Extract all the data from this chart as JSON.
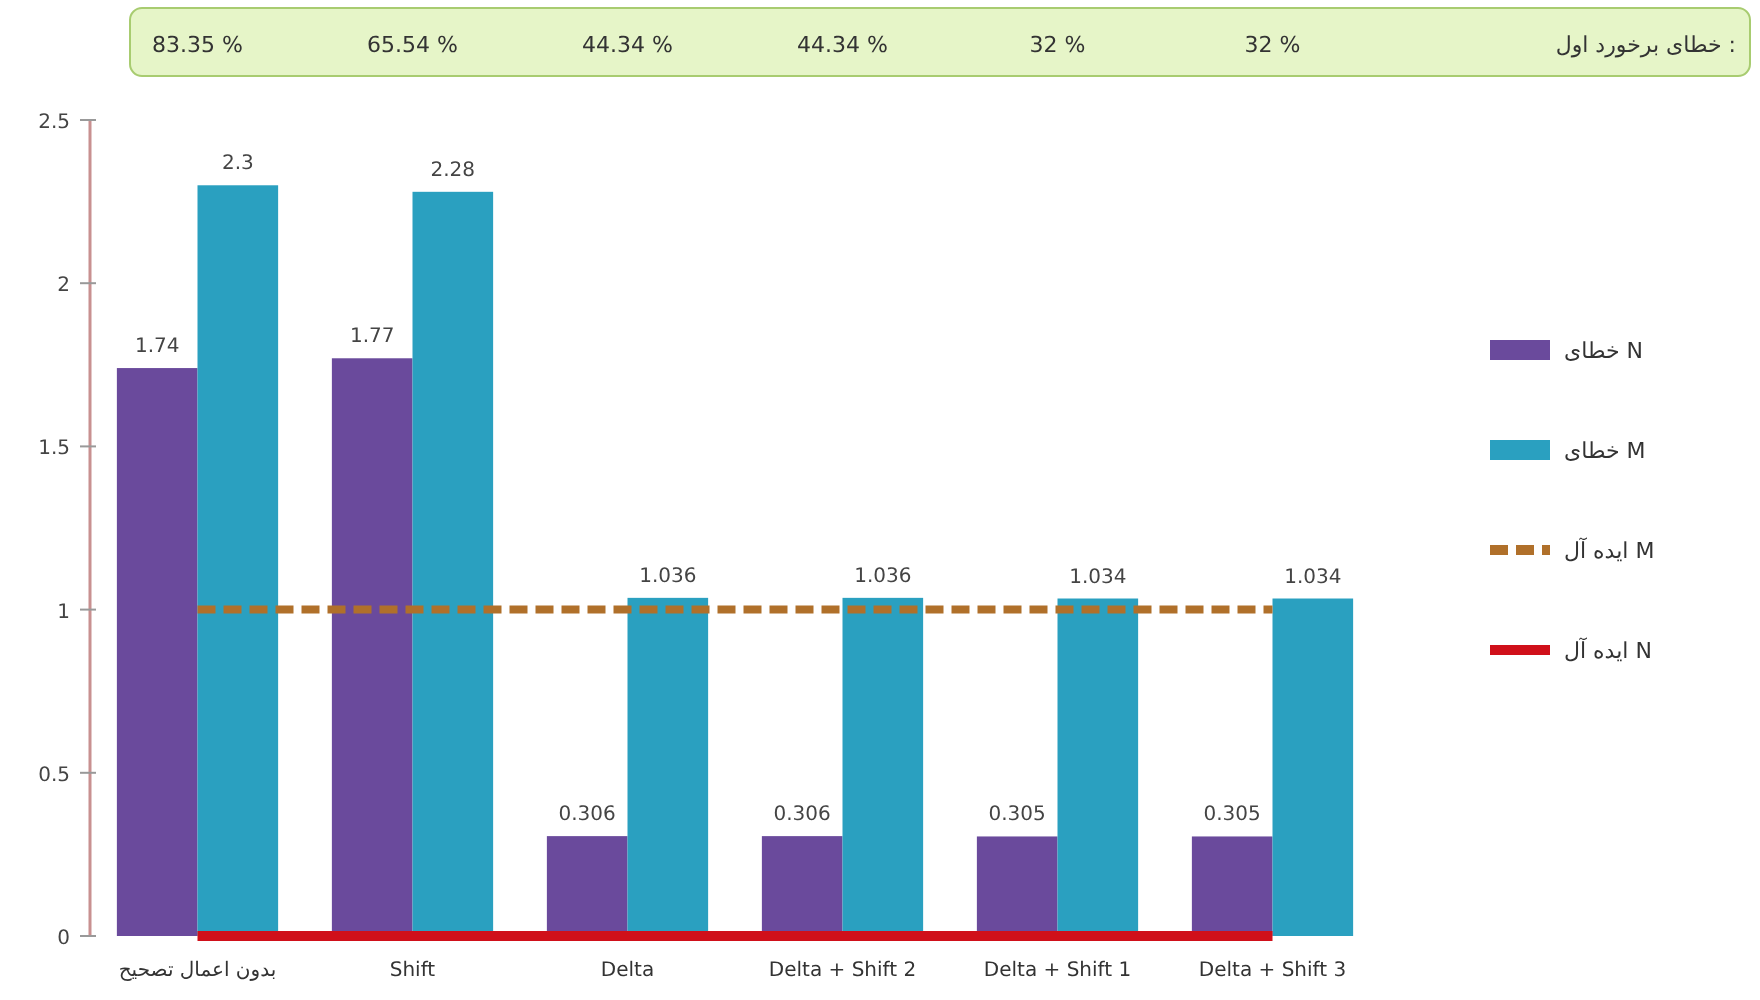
{
  "chart_data": {
    "type": "bar",
    "categories": [
      "بدون اعمال تصحیح",
      "Shift",
      "Delta",
      "Delta + Shift 2",
      "Delta + Shift 1",
      "Delta + Shift 3"
    ],
    "series": [
      {
        "name": "خطای N",
        "color": "#6a4a9c",
        "values": [
          1.74,
          1.77,
          0.306,
          0.306,
          0.305,
          0.305
        ],
        "value_labels": [
          "1.74",
          "1.77",
          "0.306",
          "0.306",
          "0.305",
          "0.305"
        ]
      },
      {
        "name": "خطای M",
        "color": "#2aa0c0",
        "values": [
          2.3,
          2.28,
          1.036,
          1.036,
          1.034,
          1.034
        ],
        "value_labels": [
          "2.3",
          "2.28",
          "1.036",
          "1.036",
          "1.034",
          "1.034"
        ]
      },
      {
        "name": "ایده آل M",
        "type": "line",
        "line_style": "dashed",
        "color": "#b0702a",
        "values": [
          1,
          1,
          1,
          1,
          1,
          1
        ]
      },
      {
        "name": "ایده آل N",
        "type": "line",
        "line_style": "solid",
        "color": "#d0101a",
        "values": [
          0,
          0,
          0,
          0,
          0,
          0
        ]
      }
    ],
    "annotations": [
      "خطای برخورد اول :",
      "83.35 %",
      "65.54 %",
      "44.34 %",
      "44.34 %",
      "32 %",
      "32 %"
    ],
    "ylim": [
      0,
      2.5
    ],
    "yticks": [
      0,
      0.5,
      1,
      1.5,
      2,
      2.5
    ],
    "grid": false,
    "legend": "right",
    "marker": "none"
  }
}
